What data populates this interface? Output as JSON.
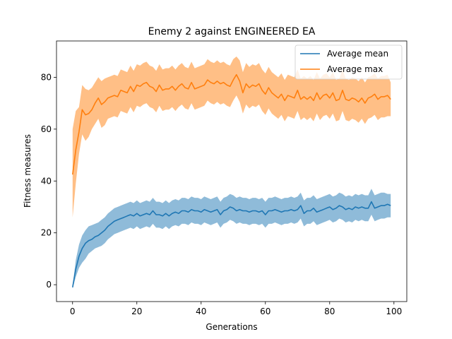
{
  "chart_data": {
    "type": "line",
    "title": "Enemy 2 against ENGINEERED EA",
    "xlabel": "Generations",
    "ylabel": "Fitness measures",
    "xlim": [
      -5,
      104
    ],
    "ylim": [
      -6.5,
      94
    ],
    "xticks": [
      0,
      20,
      40,
      60,
      80,
      100
    ],
    "yticks": [
      0,
      20,
      40,
      60,
      80
    ],
    "grid": false,
    "legend_position": "top-right",
    "series": [
      {
        "name": "Average mean",
        "color": "#1f77b4",
        "band_alpha": 0.5,
        "x": [
          0,
          1,
          2,
          3,
          4,
          5,
          6,
          7,
          8,
          9,
          10,
          11,
          12,
          13,
          14,
          15,
          16,
          17,
          18,
          19,
          20,
          21,
          22,
          23,
          24,
          25,
          26,
          27,
          28,
          29,
          30,
          31,
          32,
          33,
          34,
          35,
          36,
          37,
          38,
          39,
          40,
          41,
          42,
          43,
          44,
          45,
          46,
          47,
          48,
          49,
          50,
          51,
          52,
          53,
          54,
          55,
          56,
          57,
          58,
          59,
          60,
          61,
          62,
          63,
          64,
          65,
          66,
          67,
          68,
          69,
          70,
          71,
          72,
          73,
          74,
          75,
          76,
          77,
          78,
          79,
          80,
          81,
          82,
          83,
          84,
          85,
          86,
          87,
          88,
          89,
          90,
          91,
          92,
          93,
          94,
          95,
          96,
          97,
          98,
          99
        ],
        "values": [
          -1,
          6,
          11,
          14,
          16,
          17,
          17.5,
          18.5,
          19,
          20,
          21,
          22.5,
          23.5,
          24.5,
          25,
          25.5,
          26,
          26.5,
          27,
          26.5,
          27.5,
          26.5,
          27,
          27.5,
          27,
          28.5,
          27,
          27,
          26.5,
          27.5,
          26.5,
          27.5,
          28,
          27.5,
          28.5,
          28.5,
          28,
          29,
          28.5,
          28.5,
          28,
          29,
          28.5,
          28,
          28.5,
          29,
          27,
          28.5,
          29,
          30,
          29.5,
          28.5,
          29,
          28.5,
          28.5,
          28,
          28.5,
          28.5,
          28,
          28.5,
          27,
          28.5,
          28.5,
          29,
          28.5,
          28,
          28.5,
          28.5,
          29,
          28.5,
          29,
          30.5,
          27.5,
          28.5,
          28.5,
          29.5,
          28,
          28.5,
          29,
          29.5,
          30,
          29,
          29.5,
          30.5,
          30,
          29,
          29.5,
          29,
          30,
          29.5,
          30,
          29.5,
          29.5,
          32,
          29.5,
          30,
          30.5,
          30.5,
          31,
          30.5
        ],
        "lower": [
          -1.5,
          3,
          6.5,
          8.5,
          10,
          12,
          13,
          14,
          14.5,
          15,
          16,
          17.5,
          18.5,
          19.5,
          20,
          20.5,
          21,
          21.5,
          22,
          21.5,
          22.5,
          21.5,
          22,
          22.5,
          22,
          23.5,
          22,
          22,
          21.5,
          22.5,
          21.5,
          22.5,
          23,
          22.5,
          23.5,
          23.5,
          23,
          24,
          23.5,
          23.5,
          23,
          24,
          23.5,
          23,
          23.5,
          24,
          22,
          23.5,
          24,
          25,
          24.5,
          23.5,
          24,
          23.5,
          23.5,
          23,
          23.5,
          23.5,
          23,
          23.5,
          22,
          23.5,
          23.5,
          24,
          23.5,
          23,
          23.5,
          23.5,
          24,
          23.5,
          24,
          25.5,
          22.5,
          23.5,
          23.5,
          24.5,
          23,
          23.5,
          24,
          24.5,
          25,
          24,
          24.5,
          25.5,
          25,
          24,
          24.5,
          24,
          25,
          24.5,
          25,
          24.5,
          24.5,
          27,
          24.5,
          25,
          25.5,
          25.5,
          26,
          26
        ],
        "upper": [
          -0.5,
          9.5,
          15.5,
          19,
          21,
          22.5,
          23,
          23.5,
          24,
          25,
          26,
          27.5,
          28.5,
          29.5,
          30,
          30.5,
          31,
          31.5,
          32,
          31.5,
          32.5,
          31.5,
          32,
          32.5,
          32,
          33.5,
          32,
          32,
          31.5,
          32.5,
          31.5,
          32.5,
          33,
          32.5,
          33.5,
          33.5,
          33,
          34,
          33.5,
          33.5,
          33,
          34,
          33.5,
          33,
          33.5,
          34,
          32,
          33.5,
          34,
          35,
          34.5,
          33.5,
          34,
          33.5,
          33.5,
          33,
          33.5,
          33.5,
          33,
          33.5,
          32,
          33.5,
          33.5,
          34,
          33.5,
          33,
          33.5,
          33.5,
          34,
          33.5,
          34,
          35.5,
          32.5,
          33.5,
          33.5,
          34.5,
          33,
          33.5,
          34,
          34.5,
          35,
          34,
          34.5,
          35.5,
          35,
          34,
          34.5,
          34,
          35,
          34.5,
          35,
          34.5,
          34.5,
          37,
          34.5,
          35,
          35.5,
          35.5,
          35,
          35
        ]
      },
      {
        "name": "Average max",
        "color": "#ff7f0e",
        "band_alpha": 0.5,
        "x": [
          0,
          1,
          2,
          3,
          4,
          5,
          6,
          7,
          8,
          9,
          10,
          11,
          12,
          13,
          14,
          15,
          16,
          17,
          18,
          19,
          20,
          21,
          22,
          23,
          24,
          25,
          26,
          27,
          28,
          29,
          30,
          31,
          32,
          33,
          34,
          35,
          36,
          37,
          38,
          39,
          40,
          41,
          42,
          43,
          44,
          45,
          46,
          47,
          48,
          49,
          50,
          51,
          52,
          53,
          54,
          55,
          56,
          57,
          58,
          59,
          60,
          61,
          62,
          63,
          64,
          65,
          66,
          67,
          68,
          69,
          70,
          71,
          72,
          73,
          74,
          75,
          76,
          77,
          78,
          79,
          80,
          81,
          82,
          83,
          84,
          85,
          86,
          87,
          88,
          89,
          90,
          91,
          92,
          93,
          94,
          95,
          96,
          97,
          98,
          99
        ],
        "values": [
          42.5,
          52,
          59,
          67.5,
          65.5,
          66,
          67.5,
          70,
          72,
          69.5,
          70.5,
          72,
          72.5,
          73,
          72.5,
          75,
          74.5,
          74,
          76.5,
          74.5,
          77,
          76.5,
          77.5,
          78,
          76.5,
          76,
          74.5,
          77,
          75,
          75.5,
          75.5,
          76.5,
          75,
          76.5,
          77.5,
          76,
          75.5,
          78,
          75.5,
          76,
          76.5,
          77,
          79,
          78,
          77.5,
          78.5,
          77.5,
          78,
          77,
          76.5,
          79,
          81,
          78.5,
          74,
          77.5,
          76,
          77,
          76.5,
          77.5,
          75,
          73.5,
          76,
          74,
          73,
          72,
          73.5,
          71,
          73,
          72.5,
          72,
          75,
          71.5,
          72.5,
          71.5,
          72.5,
          71,
          74,
          71.5,
          73,
          73.5,
          72,
          74,
          71,
          71.5,
          75,
          71.5,
          71,
          72,
          71.5,
          70.5,
          72,
          70,
          72,
          72.5,
          73.5,
          71.5,
          72.5,
          72.5,
          73,
          71.5
        ],
        "lower": [
          26,
          39,
          50.5,
          58,
          55.5,
          57,
          60,
          62,
          64,
          60.5,
          61.5,
          64,
          64.5,
          65,
          64.5,
          67,
          66.5,
          66,
          68.5,
          66.5,
          69,
          68.5,
          69.5,
          70,
          68.5,
          68,
          66.5,
          69,
          67,
          67.5,
          67.5,
          68.5,
          67,
          68.5,
          69.5,
          68,
          67.5,
          70,
          67.5,
          68,
          68.5,
          69,
          71,
          70,
          69.5,
          70.5,
          69.5,
          70,
          69,
          68.5,
          71,
          73,
          70.5,
          66,
          69.5,
          68,
          69,
          68.5,
          69.5,
          67,
          65.5,
          68,
          66,
          65,
          64,
          65.5,
          63,
          65,
          64.5,
          64,
          67,
          63.5,
          64.5,
          63.5,
          64.5,
          63,
          66,
          63.5,
          65,
          65.5,
          64,
          66,
          63,
          63.5,
          67,
          63.5,
          63,
          64,
          63.5,
          62.5,
          64,
          62,
          64,
          64.5,
          65.5,
          63.5,
          64.5,
          64.5,
          65,
          65
        ],
        "upper": [
          60,
          67,
          68.5,
          77,
          75.5,
          75,
          76,
          78,
          80,
          78.5,
          79.5,
          80,
          80.5,
          81,
          80.5,
          83,
          82.5,
          82,
          84.5,
          82.5,
          85,
          84.5,
          85.5,
          86,
          84.5,
          84,
          82.5,
          85,
          83,
          83.5,
          83.5,
          84.5,
          83,
          84.5,
          85.5,
          84,
          83.5,
          86,
          83.5,
          84,
          84.5,
          85,
          87,
          86,
          85.5,
          86.5,
          85.5,
          86,
          85,
          84.5,
          87,
          88,
          86.5,
          82,
          85.5,
          84,
          85,
          84.5,
          85.5,
          83,
          81.5,
          84,
          82,
          81,
          80,
          81.5,
          79,
          81,
          80.5,
          80,
          83,
          79.5,
          80.5,
          79.5,
          80.5,
          79,
          82,
          79.5,
          81,
          81.5,
          80,
          82,
          79,
          79.5,
          83,
          79.5,
          79,
          80,
          79.5,
          78.5,
          80,
          78,
          80,
          80.5,
          81.5,
          79.5,
          80.5,
          80.5,
          81,
          78
        ]
      }
    ]
  }
}
